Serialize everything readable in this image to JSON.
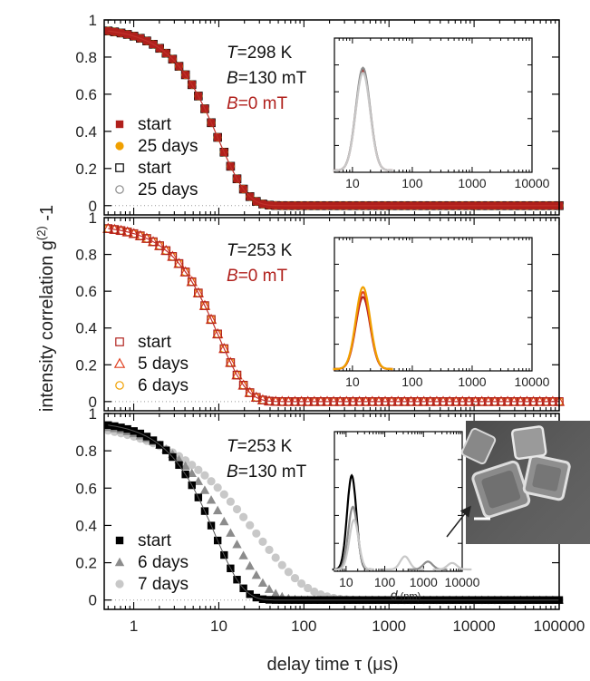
{
  "ylabel_text": "intensity correlation g",
  "ylabel_sup": "(2)",
  "ylabel_tail": " -1",
  "xlabel": "delay time τ (μs)",
  "colors": {
    "dark_red": "#b0201c",
    "orange": "#f0a000",
    "black": "#000000",
    "gray": "#8c8c8c",
    "light_gray": "#c8c8c8",
    "red_fit": "#c0302a"
  },
  "chart_data": [
    {
      "type": "scatter",
      "xscale": "log",
      "xlim": [
        0.45,
        100000
      ],
      "ylim": [
        -0.05,
        1
      ],
      "y_ticks": [
        0,
        0.2,
        0.4,
        0.6,
        0.8,
        1
      ],
      "x_tick_labels": [
        "1",
        "10",
        "100",
        "1000",
        "10000",
        "100000"
      ],
      "grid": false,
      "legend_position": "left",
      "annotation_lines": [
        {
          "var": "T",
          "rest": "=298 K",
          "color": "#111111"
        },
        {
          "var": "B",
          "rest": "=130 mT",
          "color": "#111111"
        },
        {
          "var": "B",
          "rest": "=0 mT",
          "color": "#b0201c"
        }
      ],
      "series": [
        {
          "name": "start",
          "marker": "filled-square",
          "color": "#b0201c",
          "tau": 10,
          "beta": 1.3,
          "amp": 0.96
        },
        {
          "name": "25 days",
          "marker": "filled-circle",
          "color": "#f0a000",
          "tau": 10,
          "beta": 1.3,
          "amp": 0.96
        },
        {
          "name": "start",
          "marker": "open-square",
          "color": "#000000",
          "tau": 10,
          "beta": 1.3,
          "amp": 0.96
        },
        {
          "name": "25 days",
          "marker": "open-circle",
          "color": "#8c8c8c",
          "tau": 10,
          "beta": 1.3,
          "amp": 0.96
        }
      ],
      "inset": {
        "type": "line",
        "xscale": "log",
        "x_tick_labels": [
          "10",
          "100",
          "1000",
          "10000"
        ],
        "xlim": [
          5,
          10000
        ],
        "ylim": [
          0,
          1
        ],
        "peaks": [
          {
            "color": "#b0201c",
            "center_nm": 15,
            "height": 0.8
          },
          {
            "color": "#8c8c8c",
            "center_nm": 15,
            "height": 0.82
          },
          {
            "color": "#c8c8c8",
            "center_nm": 15,
            "height": 0.78
          }
        ]
      }
    },
    {
      "type": "scatter",
      "xscale": "log",
      "xlim": [
        0.45,
        100000
      ],
      "ylim": [
        -0.05,
        1
      ],
      "y_ticks": [
        0,
        0.2,
        0.4,
        0.6,
        0.8,
        1
      ],
      "x_tick_labels": [
        "1",
        "10",
        "100",
        "1000",
        "10000",
        "100000"
      ],
      "grid": false,
      "legend_position": "left",
      "annotation_lines": [
        {
          "var": "T",
          "rest": "=253 K",
          "color": "#111111"
        },
        {
          "var": "B",
          "rest": "=0 mT",
          "color": "#b0201c"
        }
      ],
      "series": [
        {
          "name": "start",
          "marker": "open-square",
          "color": "#b0201c",
          "tau": 10,
          "beta": 1.3,
          "amp": 0.96
        },
        {
          "name": "5 days",
          "marker": "open-triangle",
          "color": "#e04020",
          "tau": 10,
          "beta": 1.3,
          "amp": 0.96
        },
        {
          "name": "6 days",
          "marker": "open-circle",
          "color": "#f0a000",
          "tau": 10,
          "beta": 1.3,
          "amp": 0.96
        }
      ],
      "inset": {
        "type": "line",
        "xscale": "log",
        "x_tick_labels": [
          "10",
          "100",
          "1000",
          "10000"
        ],
        "xlim": [
          5,
          10000
        ],
        "ylim": [
          0,
          1
        ],
        "peaks": [
          {
            "color": "#b0201c",
            "center_nm": 15,
            "height": 0.58
          },
          {
            "color": "#e04020",
            "center_nm": 15,
            "height": 0.62
          },
          {
            "color": "#f0a000",
            "center_nm": 15,
            "height": 0.66
          }
        ]
      }
    },
    {
      "type": "scatter",
      "xscale": "log",
      "xlim": [
        0.45,
        100000
      ],
      "ylim": [
        -0.05,
        1
      ],
      "y_ticks": [
        0,
        0.2,
        0.4,
        0.6,
        0.8,
        1
      ],
      "x_tick_labels": [
        "1",
        "10",
        "100",
        "1000",
        "10000",
        "100000"
      ],
      "grid": false,
      "legend_position": "left",
      "annotation_lines": [
        {
          "var": "T",
          "rest": "=253 K",
          "color": "#111111"
        },
        {
          "var": "B",
          "rest": "=130 mT",
          "color": "#111111"
        }
      ],
      "series": [
        {
          "name": "start",
          "marker": "filled-square",
          "color": "#000000",
          "tau": 9,
          "beta": 1.3,
          "amp": 0.96
        },
        {
          "name": "6 days",
          "marker": "filled-triangle",
          "color": "#8c8c8c",
          "tau": 14,
          "beta": 1.0,
          "amp": 0.96
        },
        {
          "name": "7 days",
          "marker": "filled-circle",
          "color": "#c8c8c8",
          "tau": 28,
          "beta": 0.72,
          "amp": 0.96
        }
      ],
      "inset": {
        "type": "line",
        "xscale": "log",
        "x_tick_labels": [
          "10",
          "100",
          "1000",
          "10000"
        ],
        "xlabel_var": "d",
        "xlabel_unit": " (nm)",
        "xlim": [
          5,
          10000
        ],
        "ylim": [
          0,
          1
        ],
        "peaks": [
          {
            "color": "#000000",
            "center_nm": 14,
            "height": 0.72
          },
          {
            "color": "#8c8c8c",
            "center_nm": 15,
            "height": 0.48
          },
          {
            "color": "#c8c8c8",
            "center_nm": 16,
            "height": 0.38
          },
          {
            "color": "#c8c8c8",
            "center_nm": 330,
            "height": 0.1
          },
          {
            "color": "#8c8c8c",
            "center_nm": 1300,
            "height": 0.06
          },
          {
            "color": "#c8c8c8",
            "center_nm": 5500,
            "height": 0.05
          }
        ]
      }
    }
  ]
}
